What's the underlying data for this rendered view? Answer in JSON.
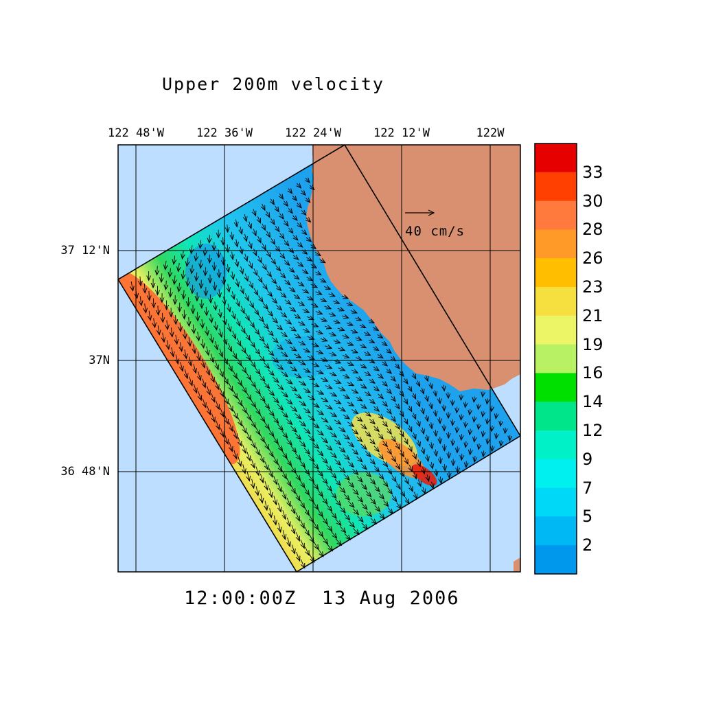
{
  "title": "Upper 200m velocity",
  "timestamp": "12:00:00Z  13 Aug 2006",
  "longitude_ticks": [
    "122 48'W",
    "122 36'W",
    "122 24'W",
    "122 12'W",
    "122W"
  ],
  "latitude_ticks": [
    "37 12'N",
    "37N",
    "36 48'N"
  ],
  "reference_vector": {
    "label": "40 cm/s",
    "speed_cm_s": 40
  },
  "colorbar": {
    "unit": "cm/s",
    "labels": [
      "33",
      "30",
      "28",
      "26",
      "23",
      "21",
      "19",
      "16",
      "14",
      "12",
      "9",
      "7",
      "5",
      "2"
    ],
    "colors_top_to_bottom": [
      "#e60000",
      "#ff4000",
      "#ff7a3c",
      "#ff9a28",
      "#ffbf00",
      "#f5e040",
      "#ecf566",
      "#b8f264",
      "#00e000",
      "#00e48a",
      "#00f0c8",
      "#00f0f0",
      "#00d8f8",
      "#00b8f4",
      "#0098ec"
    ]
  },
  "colors": {
    "ocean": "#bedeff",
    "land": "#d99070",
    "domain_outline": "#000000"
  }
}
